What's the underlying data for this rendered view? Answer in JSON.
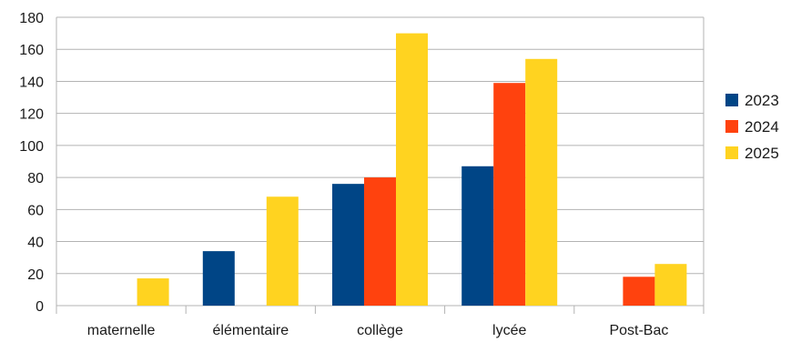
{
  "chart_data": {
    "type": "bar",
    "categories": [
      "maternelle",
      "élémentaire",
      "collège",
      "lycée",
      "Post-Bac"
    ],
    "series": [
      {
        "name": "2023",
        "color": "#004586",
        "values": [
          0,
          34,
          76,
          87,
          0
        ]
      },
      {
        "name": "2024",
        "color": "#ff420e",
        "values": [
          0,
          0,
          80,
          139,
          18
        ]
      },
      {
        "name": "2025",
        "color": "#ffd320",
        "values": [
          17,
          68,
          170,
          154,
          26
        ]
      }
    ],
    "title": "",
    "xlabel": "",
    "ylabel": "",
    "ylim": [
      0,
      180
    ],
    "yticks": [
      "0",
      "20",
      "40",
      "60",
      "80",
      "100",
      "120",
      "140",
      "160",
      "180"
    ],
    "grid": "horizontal",
    "legend_position": "right",
    "grid_color": "#b3b3b3"
  }
}
